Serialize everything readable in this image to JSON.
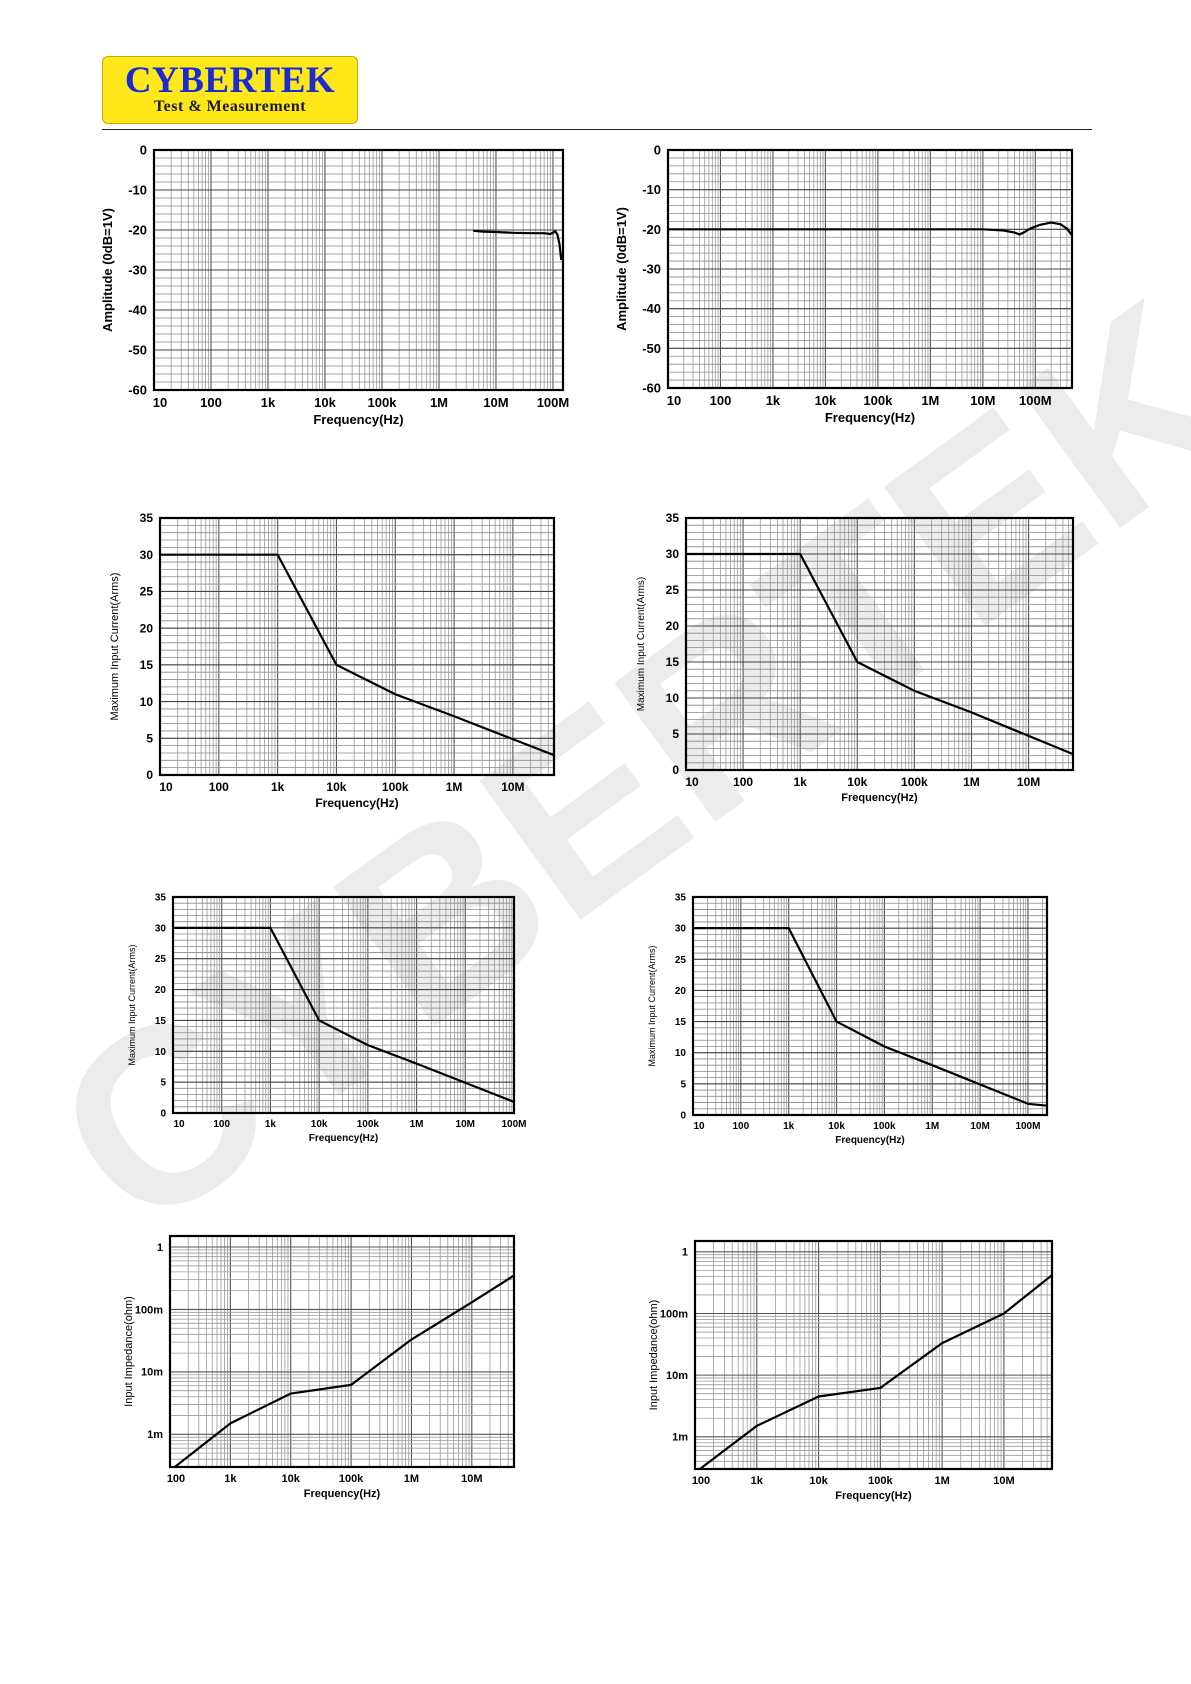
{
  "header": {
    "brand": "CYBERTEK",
    "tagline": "Test & Measurement",
    "brand_color": "#1a2bd4",
    "logo_bg_color": "#ffe81a"
  },
  "watermark": {
    "text": "CYBERTEK",
    "color": "#ececec"
  },
  "chart_data": [
    {
      "type": "line",
      "xlabel": "Frequency(Hz)",
      "ylabel": "Amplitude (0dB=1V)",
      "x_scale": "log",
      "xlim": [
        10,
        150000000
      ],
      "ylim": [
        -60,
        0
      ],
      "xticks": [
        [
          10,
          "10"
        ],
        [
          100,
          "100"
        ],
        [
          1000,
          "1k"
        ],
        [
          10000,
          "10k"
        ],
        [
          100000,
          "100k"
        ],
        [
          1000000,
          "1M"
        ],
        [
          10000000,
          "10M"
        ],
        [
          100000000,
          "100M"
        ]
      ],
      "yticks": [
        [
          0,
          "0"
        ],
        [
          -10,
          "-10"
        ],
        [
          -20,
          "-20"
        ],
        [
          -30,
          "-30"
        ],
        [
          -40,
          "-40"
        ],
        [
          -50,
          "-50"
        ],
        [
          -60,
          "-60"
        ]
      ],
      "y_scale": "linear",
      "y_minor_step": 2,
      "x_minor": [
        2,
        3,
        4,
        5,
        6,
        7,
        8,
        9
      ],
      "grid": true,
      "series": [
        {
          "x": [
            4000000,
            6000000,
            10000000,
            20000000,
            40000000,
            70000000,
            90000000,
            100000000,
            110000000,
            120000000,
            130000000,
            140000000
          ],
          "y": [
            -20.2,
            -20.4,
            -20.5,
            -20.7,
            -20.8,
            -20.8,
            -21.0,
            -20.7,
            -20.3,
            -21.2,
            -23.5,
            -27.5
          ]
        }
      ]
    },
    {
      "type": "line",
      "xlabel": "Frequency(Hz)",
      "ylabel": "Amplitude (0dB=1V)",
      "x_scale": "log",
      "xlim": [
        10,
        500000000
      ],
      "ylim": [
        -60,
        0
      ],
      "xticks": [
        [
          10,
          "10"
        ],
        [
          100,
          "100"
        ],
        [
          1000,
          "1k"
        ],
        [
          10000,
          "10k"
        ],
        [
          100000,
          "100k"
        ],
        [
          1000000,
          "1M"
        ],
        [
          10000000,
          "10M"
        ],
        [
          100000000,
          "100M"
        ]
      ],
      "yticks": [
        [
          0,
          "0"
        ],
        [
          -10,
          "-10"
        ],
        [
          -20,
          "-20"
        ],
        [
          -30,
          "-30"
        ],
        [
          -40,
          "-40"
        ],
        [
          -50,
          "-50"
        ],
        [
          -60,
          "-60"
        ]
      ],
      "y_scale": "linear",
      "y_minor_step": 2,
      "x_minor": [
        2,
        3,
        4,
        5,
        6,
        7,
        8,
        9
      ],
      "grid": true,
      "series": [
        {
          "x": [
            10,
            1000,
            100000,
            1000000,
            10000000,
            25000000,
            40000000,
            50000000,
            60000000,
            80000000,
            120000000,
            200000000,
            300000000,
            400000000,
            500000000
          ],
          "y": [
            -20,
            -20,
            -20,
            -20,
            -20,
            -20.3,
            -20.8,
            -21.3,
            -20.8,
            -19.8,
            -18.9,
            -18.3,
            -18.7,
            -19.8,
            -21.5
          ]
        }
      ]
    },
    {
      "type": "line",
      "xlabel": "Frequency(Hz)",
      "ylabel": "Maximum  Input Current(Arms)",
      "x_scale": "log",
      "xlim": [
        10,
        50000000
      ],
      "ylim": [
        0,
        35
      ],
      "xticks": [
        [
          10,
          "10"
        ],
        [
          100,
          "100"
        ],
        [
          1000,
          "1k"
        ],
        [
          10000,
          "10k"
        ],
        [
          100000,
          "100k"
        ],
        [
          1000000,
          "1M"
        ],
        [
          10000000,
          "10M"
        ]
      ],
      "yticks": [
        [
          0,
          "0"
        ],
        [
          5,
          "5"
        ],
        [
          10,
          "10"
        ],
        [
          15,
          "15"
        ],
        [
          20,
          "20"
        ],
        [
          25,
          "25"
        ],
        [
          30,
          "30"
        ],
        [
          35,
          "35"
        ]
      ],
      "y_scale": "linear",
      "y_minor_step": 1,
      "x_minor": [
        2,
        3,
        4,
        5,
        6,
        7,
        8,
        9
      ],
      "grid": true,
      "series": [
        {
          "x": [
            10,
            1000,
            10000,
            100000,
            1000000,
            50000000
          ],
          "y": [
            30,
            30,
            15,
            11,
            8,
            2.7
          ]
        }
      ]
    },
    {
      "type": "line",
      "xlabel": "Frequency(Hz)",
      "ylabel": "Maximum  Input Current(Arms)",
      "x_scale": "log",
      "xlim": [
        10,
        60000000
      ],
      "ylim": [
        0,
        35
      ],
      "xticks": [
        [
          10,
          "10"
        ],
        [
          100,
          "100"
        ],
        [
          1000,
          "1k"
        ],
        [
          10000,
          "10k"
        ],
        [
          100000,
          "100k"
        ],
        [
          1000000,
          "1M"
        ],
        [
          10000000,
          "10M"
        ]
      ],
      "yticks": [
        [
          0,
          "0"
        ],
        [
          5,
          "5"
        ],
        [
          10,
          "10"
        ],
        [
          15,
          "15"
        ],
        [
          20,
          "20"
        ],
        [
          25,
          "25"
        ],
        [
          30,
          "30"
        ],
        [
          35,
          "35"
        ]
      ],
      "y_scale": "linear",
      "y_minor_step": 1,
      "x_minor": [
        2,
        3,
        4,
        5,
        6,
        7,
        8,
        9
      ],
      "grid": true,
      "series": [
        {
          "x": [
            10,
            1000,
            10000,
            100000,
            1000000,
            60000000
          ],
          "y": [
            30,
            30,
            15,
            11,
            8,
            2.2
          ]
        }
      ]
    },
    {
      "type": "line",
      "xlabel": "Frequency(Hz)",
      "ylabel": "Maximum  Input Current(Arms)",
      "x_scale": "log",
      "xlim": [
        10,
        100000000
      ],
      "ylim": [
        0,
        35
      ],
      "xticks": [
        [
          10,
          "10"
        ],
        [
          100,
          "100"
        ],
        [
          1000,
          "1k"
        ],
        [
          10000,
          "10k"
        ],
        [
          100000,
          "100k"
        ],
        [
          1000000,
          "1M"
        ],
        [
          10000000,
          "10M"
        ],
        [
          100000000,
          "100M"
        ]
      ],
      "yticks": [
        [
          0,
          "0"
        ],
        [
          5,
          "5"
        ],
        [
          10,
          "10"
        ],
        [
          15,
          "15"
        ],
        [
          20,
          "20"
        ],
        [
          25,
          "25"
        ],
        [
          30,
          "30"
        ],
        [
          35,
          "35"
        ]
      ],
      "y_scale": "linear",
      "y_minor_step": 1,
      "x_minor": [
        2,
        3,
        4,
        5,
        6,
        7,
        8,
        9
      ],
      "grid": true,
      "series": [
        {
          "x": [
            10,
            1000,
            10000,
            100000,
            1000000,
            100000000
          ],
          "y": [
            30,
            30,
            15,
            11,
            8,
            1.8
          ]
        }
      ]
    },
    {
      "type": "line",
      "xlabel": "Frequency(Hz)",
      "ylabel": "Maximum  Input Current(Arms)",
      "x_scale": "log",
      "xlim": [
        10,
        250000000
      ],
      "ylim": [
        0,
        35
      ],
      "xticks": [
        [
          10,
          "10"
        ],
        [
          100,
          "100"
        ],
        [
          1000,
          "1k"
        ],
        [
          10000,
          "10k"
        ],
        [
          100000,
          "100k"
        ],
        [
          1000000,
          "1M"
        ],
        [
          10000000,
          "10M"
        ],
        [
          100000000,
          "100M"
        ]
      ],
      "yticks": [
        [
          0,
          "0"
        ],
        [
          5,
          "5"
        ],
        [
          10,
          "10"
        ],
        [
          15,
          "15"
        ],
        [
          20,
          "20"
        ],
        [
          25,
          "25"
        ],
        [
          30,
          "30"
        ],
        [
          35,
          "35"
        ]
      ],
      "y_scale": "linear",
      "y_minor_step": 1,
      "x_minor": [
        2,
        3,
        4,
        5,
        6,
        7,
        8,
        9
      ],
      "grid": true,
      "series": [
        {
          "x": [
            10,
            1000,
            10000,
            100000,
            1000000,
            100000000,
            250000000
          ],
          "y": [
            30,
            30,
            15,
            11,
            8,
            1.8,
            1.5
          ]
        }
      ]
    },
    {
      "type": "line",
      "xlabel": "Frequency(Hz)",
      "ylabel": "Input Impedance(ohm)",
      "x_scale": "log",
      "xlim": [
        100,
        50000000
      ],
      "ylim": [
        0.0003,
        1.5
      ],
      "xticks": [
        [
          100,
          "100"
        ],
        [
          1000,
          "1k"
        ],
        [
          10000,
          "10k"
        ],
        [
          100000,
          "100k"
        ],
        [
          1000000,
          "1M"
        ],
        [
          10000000,
          "10M"
        ]
      ],
      "yticks": [
        [
          0.001,
          "1m"
        ],
        [
          0.01,
          "10m"
        ],
        [
          0.1,
          "100m"
        ],
        [
          1,
          "1"
        ]
      ],
      "y_scale": "log",
      "x_minor": [
        2,
        3,
        4,
        5,
        6,
        7,
        8,
        9
      ],
      "grid": true,
      "series": [
        {
          "x": [
            120,
            1000,
            10000,
            100000,
            1000000,
            10000000,
            50000000
          ],
          "y": [
            0.0003,
            0.0015,
            0.0045,
            0.0062,
            0.033,
            0.13,
            0.35
          ]
        }
      ]
    },
    {
      "type": "line",
      "xlabel": "Frequency(Hz)",
      "ylabel": "Input Impedance(ohm)",
      "x_scale": "log",
      "xlim": [
        100,
        60000000
      ],
      "ylim": [
        0.0003,
        1.5
      ],
      "xticks": [
        [
          100,
          "100"
        ],
        [
          1000,
          "1k"
        ],
        [
          10000,
          "10k"
        ],
        [
          100000,
          "100k"
        ],
        [
          1000000,
          "1M"
        ],
        [
          10000000,
          "10M"
        ]
      ],
      "yticks": [
        [
          0.001,
          "1m"
        ],
        [
          0.01,
          "10m"
        ],
        [
          0.1,
          "100m"
        ],
        [
          1,
          "1"
        ]
      ],
      "y_scale": "log",
      "x_minor": [
        2,
        3,
        4,
        5,
        6,
        7,
        8,
        9
      ],
      "grid": true,
      "series": [
        {
          "x": [
            120,
            1000,
            10000,
            100000,
            1000000,
            10000000,
            60000000
          ],
          "y": [
            0.0003,
            0.0015,
            0.0045,
            0.0062,
            0.033,
            0.1,
            0.42
          ]
        }
      ]
    }
  ]
}
